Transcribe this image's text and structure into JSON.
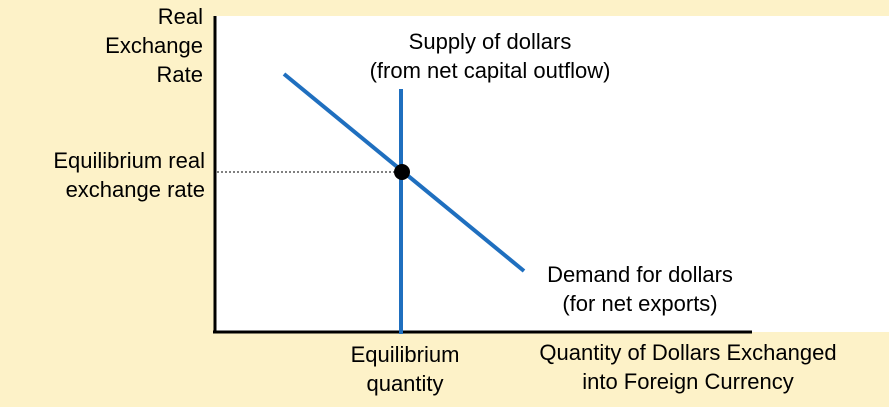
{
  "y_axis_label": [
    "Real",
    "Exchange",
    "Rate"
  ],
  "x_axis_label": [
    "Quantity of Dollars Exchanged",
    "into Foreign Currency"
  ],
  "equilibrium_rate_label": [
    "Equilibrium real",
    "exchange rate"
  ],
  "equilibrium_quantity_label": [
    "Equilibrium",
    "quantity"
  ],
  "supply_curve_label": [
    "Supply of dollars",
    "(from net capital outflow)"
  ],
  "demand_curve_label": [
    "Demand for dollars",
    "(for net exports)"
  ],
  "colors": {
    "background": "#fdf2c8",
    "plot_area": "#ffffff",
    "curve": "#1f6fbf",
    "axis": "#000000"
  }
}
